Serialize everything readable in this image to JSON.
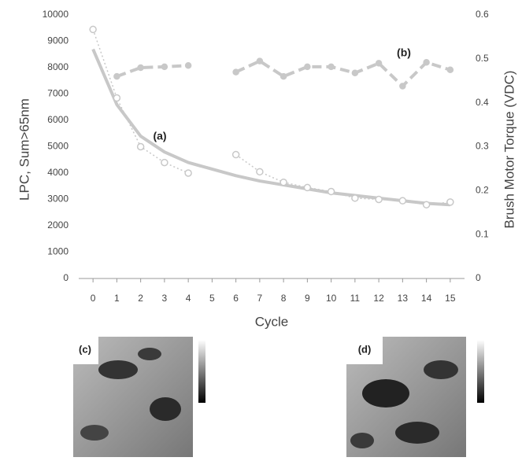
{
  "chart_data": {
    "type": "line",
    "x": [
      0,
      1,
      2,
      3,
      4,
      5,
      6,
      7,
      8,
      9,
      10,
      11,
      12,
      13,
      14,
      15
    ],
    "xticks": [
      0,
      1,
      2,
      3,
      4,
      5,
      6,
      7,
      8,
      9,
      10,
      11,
      12,
      13,
      14,
      15
    ],
    "xlim": [
      -0.6,
      15.6
    ],
    "xlabel": "Cycle",
    "ylabel": "LPC, Sum>65nm",
    "y2label": "Brush Motor Torque (VDC)",
    "ylim": [
      0,
      10000
    ],
    "yticks": [
      0,
      1000,
      2000,
      3000,
      4000,
      5000,
      6000,
      7000,
      8000,
      9000,
      10000
    ],
    "y2lim": [
      0,
      0.6
    ],
    "y2ticks": [
      0,
      0.1,
      0.2,
      0.3,
      0.4,
      0.5,
      0.6
    ],
    "series": [
      {
        "color": "#c8c8c8",
        "values": [
          9450,
          6850,
          5000,
          4400,
          4000,
          null,
          4700,
          4050,
          3650,
          3450,
          3300,
          3050,
          3000,
          2950,
          2800,
          2900
        ]
      },
      {
        "color": "#c8c8c8",
        "axis": "y2",
        "values": [
          null,
          0.46,
          0.48,
          0.482,
          0.485,
          null,
          0.47,
          0.495,
          0.46,
          0.482,
          0.482,
          0.468,
          0.49,
          0.438,
          0.492,
          0.475
        ]
      }
    ],
    "trendline": {
      "color": "#c8c8c8",
      "x": [
        0,
        1,
        2,
        3,
        4,
        5,
        6,
        7,
        8,
        9,
        10,
        11,
        12,
        13,
        14,
        15
      ],
      "values": [
        8700,
        6600,
        5400,
        4800,
        4400,
        4150,
        3900,
        3700,
        3550,
        3400,
        3250,
        3150,
        3050,
        2950,
        2850,
        2800
      ]
    },
    "annotations": [
      "(a)",
      "(b)",
      "(c)",
      "(d)"
    ]
  }
}
